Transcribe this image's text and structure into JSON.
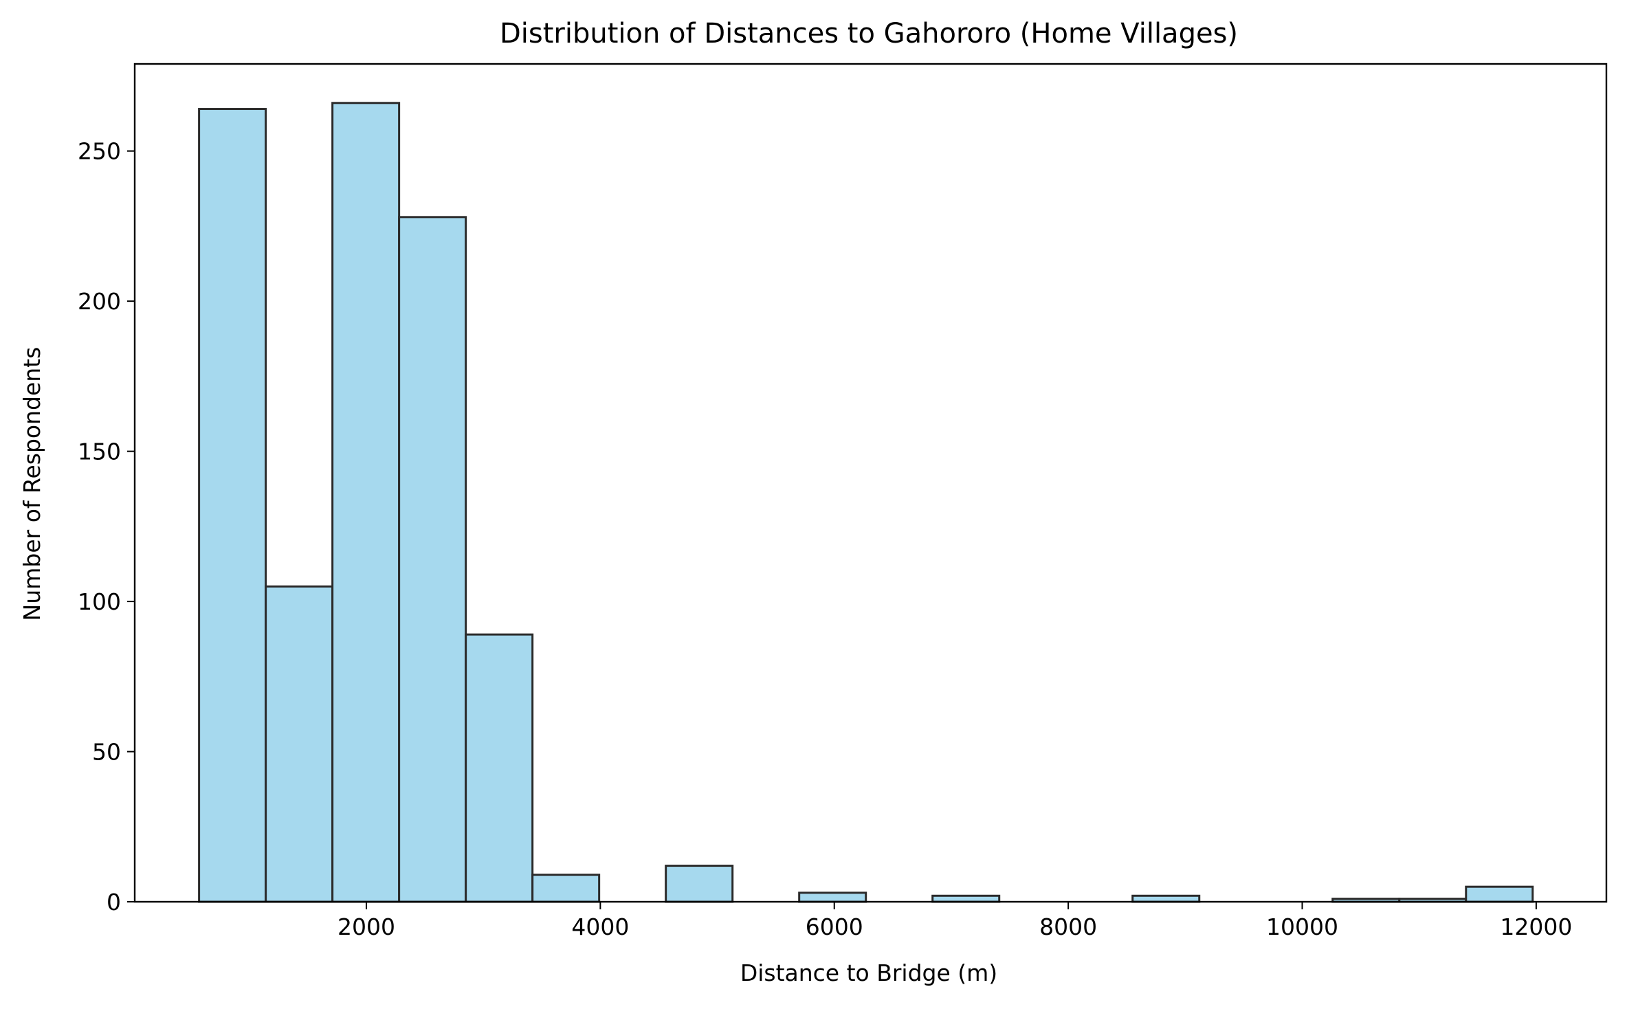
{
  "chart_data": {
    "type": "bar",
    "subtype": "histogram",
    "title": "Distribution of Distances to Gahororo (Home Villages)",
    "xlabel": "Distance to Bridge (m)",
    "ylabel": "Number of Respondents",
    "xlim": [
      20,
      12600
    ],
    "ylim": [
      0,
      279
    ],
    "xticks": [
      2000,
      4000,
      6000,
      8000,
      10000,
      12000
    ],
    "xtick_labels": [
      "2000",
      "4000",
      "6000",
      "8000",
      "10000",
      "12000"
    ],
    "yticks": [
      0,
      50,
      100,
      150,
      200,
      250
    ],
    "ytick_labels": [
      "0",
      "50",
      "100",
      "150",
      "200",
      "250"
    ],
    "grid": false,
    "legend": "none",
    "bar_color": "#a6d9ee",
    "edge_color": "#2b2b2b",
    "bins": [
      {
        "x0": 570,
        "x1": 1140,
        "value": 264
      },
      {
        "x0": 1140,
        "x1": 1710,
        "value": 105
      },
      {
        "x0": 1710,
        "x1": 2280,
        "value": 266
      },
      {
        "x0": 2280,
        "x1": 2850,
        "value": 228
      },
      {
        "x0": 2850,
        "x1": 3420,
        "value": 89
      },
      {
        "x0": 3420,
        "x1": 3990,
        "value": 9
      },
      {
        "x0": 3990,
        "x1": 4560,
        "value": 0
      },
      {
        "x0": 4560,
        "x1": 5130,
        "value": 12
      },
      {
        "x0": 5130,
        "x1": 5700,
        "value": 0
      },
      {
        "x0": 5700,
        "x1": 6270,
        "value": 3
      },
      {
        "x0": 6270,
        "x1": 6840,
        "value": 0
      },
      {
        "x0": 6840,
        "x1": 7410,
        "value": 2
      },
      {
        "x0": 7410,
        "x1": 7980,
        "value": 0
      },
      {
        "x0": 7980,
        "x1": 8550,
        "value": 0
      },
      {
        "x0": 8550,
        "x1": 9120,
        "value": 2
      },
      {
        "x0": 9120,
        "x1": 9690,
        "value": 0
      },
      {
        "x0": 9690,
        "x1": 10260,
        "value": 0
      },
      {
        "x0": 10260,
        "x1": 10830,
        "value": 1
      },
      {
        "x0": 10830,
        "x1": 11400,
        "value": 1
      },
      {
        "x0": 11400,
        "x1": 11970,
        "value": 5
      }
    ]
  }
}
